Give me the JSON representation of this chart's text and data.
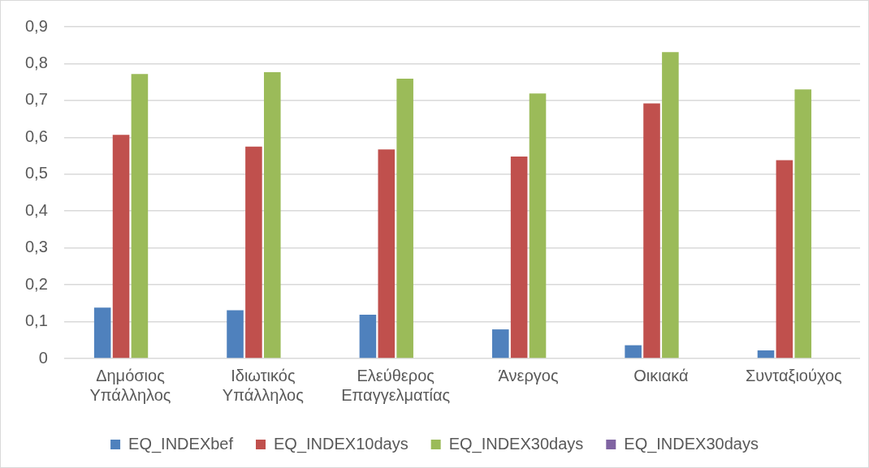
{
  "chart_data": {
    "type": "bar",
    "categories": [
      "Δημόσιος\nΥπάλληλος",
      "Ιδιωτικός\nΥπάλληλος",
      "Ελεύθερος\nΕπαγγελματίας",
      "Άνεργος",
      "Οικιακά",
      "Συνταξιούχος"
    ],
    "series": [
      {
        "name": "EQ_INDEXbef",
        "color": "#4f81bd",
        "values": [
          0.138,
          0.131,
          0.119,
          0.079,
          0.036,
          0.022
        ]
      },
      {
        "name": "EQ_INDEX10days",
        "color": "#c0504d",
        "values": [
          0.607,
          0.575,
          0.567,
          0.548,
          0.692,
          0.538
        ]
      },
      {
        "name": "EQ_INDEX30days",
        "color": "#9bbb59",
        "values": [
          0.772,
          0.777,
          0.759,
          0.719,
          0.831,
          0.73
        ]
      },
      {
        "name": "EQ_INDEX30days",
        "color": "#8064a2",
        "values": [
          null,
          null,
          null,
          null,
          null,
          null
        ]
      }
    ],
    "ylim": [
      0,
      0.9
    ],
    "yticks": [
      {
        "value": 0,
        "label": "0"
      },
      {
        "value": 0.1,
        "label": "0,1"
      },
      {
        "value": 0.2,
        "label": "0,2"
      },
      {
        "value": 0.3,
        "label": "0,3"
      },
      {
        "value": 0.4,
        "label": "0,4"
      },
      {
        "value": 0.5,
        "label": "0,5"
      },
      {
        "value": 0.6,
        "label": "0,6"
      },
      {
        "value": 0.7,
        "label": "0,7"
      },
      {
        "value": 0.8,
        "label": "0,8"
      },
      {
        "value": 0.9,
        "label": "0,9"
      }
    ],
    "grid": "y",
    "legend": "bottom"
  }
}
